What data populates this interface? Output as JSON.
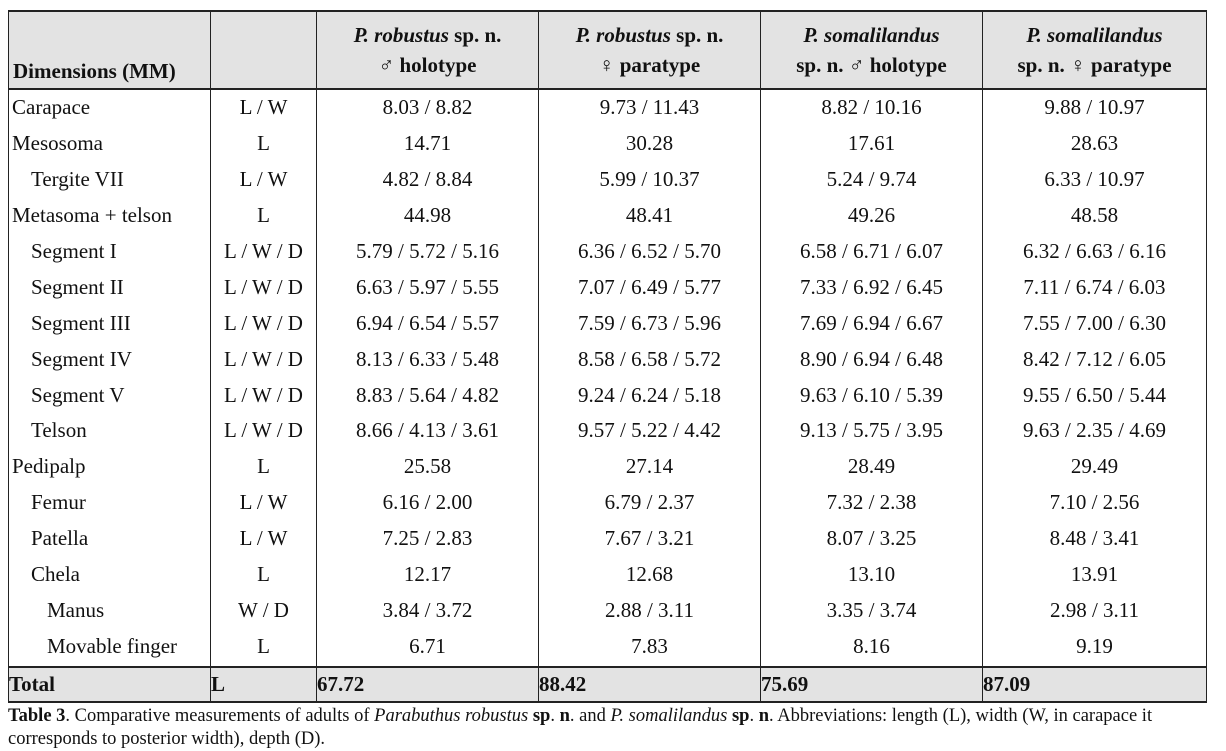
{
  "table": {
    "headers": [
      {
        "lines": [
          "Dimensions (MM)"
        ]
      },
      {
        "lines": [
          ""
        ]
      },
      {
        "line1_species": "P. robustus",
        "line1_rest": " sp. n.",
        "line2": "♂ holotype"
      },
      {
        "line1_species": "P. robustus",
        "line1_rest": " sp. n.",
        "line2": "♀ paratype"
      },
      {
        "line1_species": "P. somalilandus",
        "line1_rest": "",
        "line2": "sp. n. ♂ holotype"
      },
      {
        "line1_species": "P. somalilandus",
        "line1_rest": "",
        "line2": "sp. n. ♀ paratype"
      }
    ],
    "rows": [
      {
        "dim": "Carapace",
        "level": 0,
        "measure": "L / W",
        "values": [
          "8.03 / 8.82",
          "9.73 / 11.43",
          "8.82 / 10.16",
          "9.88 / 10.97"
        ]
      },
      {
        "dim": "Mesosoma",
        "level": 0,
        "measure": "L",
        "values": [
          "14.71",
          "30.28",
          "17.61",
          "28.63"
        ]
      },
      {
        "dim": "Tergite VII",
        "level": 1,
        "measure": "L / W",
        "values": [
          "4.82 / 8.84",
          "5.99 / 10.37",
          "5.24 / 9.74",
          "6.33 / 10.97"
        ]
      },
      {
        "dim": "Metasoma + telson",
        "level": 0,
        "measure": "L",
        "values": [
          "44.98",
          "48.41",
          "49.26",
          "48.58"
        ]
      },
      {
        "dim": "Segment I",
        "level": 1,
        "measure": "L / W / D",
        "values": [
          "5.79 / 5.72 / 5.16",
          "6.36 / 6.52 / 5.70",
          "6.58 / 6.71 / 6.07",
          "6.32 / 6.63 / 6.16"
        ]
      },
      {
        "dim": "Segment II",
        "level": 1,
        "measure": "L / W / D",
        "values": [
          "6.63 / 5.97 / 5.55",
          "7.07 / 6.49 / 5.77",
          "7.33 / 6.92 / 6.45",
          "7.11 / 6.74 / 6.03"
        ]
      },
      {
        "dim": "Segment III",
        "level": 1,
        "measure": "L / W / D",
        "values": [
          "6.94 / 6.54 / 5.57",
          "7.59 / 6.73 / 5.96",
          "7.69 / 6.94 / 6.67",
          "7.55 / 7.00 / 6.30"
        ]
      },
      {
        "dim": "Segment IV",
        "level": 1,
        "measure": "L / W / D",
        "values": [
          "8.13 / 6.33 / 5.48",
          "8.58 / 6.58 / 5.72",
          "8.90 / 6.94 / 6.48",
          "8.42 / 7.12 / 6.05"
        ]
      },
      {
        "dim": "Segment V",
        "level": 1,
        "measure": "L / W / D",
        "values": [
          "8.83 / 5.64 / 4.82",
          "9.24 / 6.24 / 5.18",
          "9.63 / 6.10 / 5.39",
          "9.55 / 6.50 / 5.44"
        ]
      },
      {
        "dim": "Telson",
        "level": 1,
        "measure": "L / W / D",
        "values": [
          "8.66 / 4.13 / 3.61",
          "9.57 / 5.22 / 4.42",
          "9.13 / 5.75 / 3.95",
          "9.63 / 2.35 / 4.69"
        ]
      },
      {
        "dim": "Pedipalp",
        "level": 0,
        "measure": "L",
        "values": [
          "25.58",
          "27.14",
          "28.49",
          "29.49"
        ]
      },
      {
        "dim": "Femur",
        "level": 1,
        "measure": "L / W",
        "values": [
          "6.16 / 2.00",
          "6.79 / 2.37",
          "7.32 / 2.38",
          "7.10 / 2.56"
        ]
      },
      {
        "dim": "Patella",
        "level": 1,
        "measure": "L / W",
        "values": [
          "7.25 / 2.83",
          "7.67 / 3.21",
          "8.07 / 3.25",
          "8.48 / 3.41"
        ]
      },
      {
        "dim": "Chela",
        "level": 1,
        "measure": "L",
        "values": [
          "12.17",
          "12.68",
          "13.10",
          "13.91"
        ]
      },
      {
        "dim": "Manus",
        "level": 2,
        "measure": "W / D",
        "values": [
          "3.84 / 3.72",
          "2.88 / 3.11",
          "3.35 / 3.74",
          "2.98 / 3.11"
        ]
      },
      {
        "dim": "Movable finger",
        "level": 2,
        "measure": "L",
        "values": [
          "6.71",
          "7.83",
          "8.16",
          "9.19"
        ]
      }
    ],
    "total": {
      "dim": "Total",
      "measure": "L",
      "values": [
        "67.72",
        "88.42",
        "75.69",
        "87.09"
      ]
    }
  },
  "caption": {
    "label": "Table 3",
    "t1": ". Comparative measurements of adults of ",
    "genus1": "Parabuthus robustus",
    "spn1": "sp",
    "dot1": ". ",
    "spn1b": "n",
    "t2": ". and ",
    "genus2": "P. somalilandus",
    "t3": " ",
    "spn2": "sp",
    "dot2": ". ",
    "spn2b": "n",
    "t4": ". Abbreviations: length (L), width (W, in carapace it corresponds to posterior width), depth (D)."
  }
}
